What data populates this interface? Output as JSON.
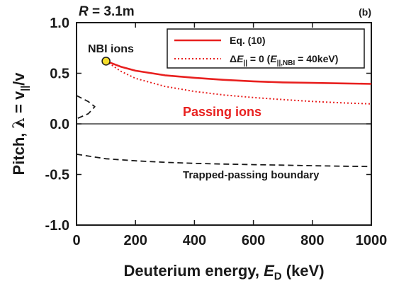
{
  "chart_data": {
    "type": "line",
    "panel_label": "(b)",
    "header": {
      "var": "R",
      "value": " = 3.1m"
    },
    "xlabel": {
      "main": "Deuterium energy, ",
      "var": "E",
      "sub": "D",
      "unit": " (keV)"
    },
    "ylabel": {
      "main": "Pitch, ",
      "lambda": "λ",
      "eq": " = v",
      "sub": "||",
      "tail": "/v"
    },
    "xlim": [
      0,
      1000
    ],
    "ylim": [
      -1.0,
      1.0
    ],
    "x_ticks": [
      0,
      200,
      400,
      600,
      800,
      1000
    ],
    "y_ticks": [
      -1.0,
      -0.5,
      0.0,
      0.5,
      1.0
    ],
    "y_tick_labels": [
      "-1.0",
      "-0.5",
      "0.0",
      "0.5",
      "1.0"
    ],
    "grid": false,
    "legend_position": "top-right",
    "legend": [
      {
        "label": "Eq. (10)"
      },
      {
        "label_parts": [
          "Δ",
          "E",
          "||",
          " = 0 (",
          "E",
          "||,NBI",
          " = 40keV)"
        ]
      }
    ],
    "series": [
      {
        "name": "Eq. (10)",
        "color": "#e8201f",
        "style": "solid",
        "x": [
          100,
          150,
          200,
          300,
          400,
          500,
          600,
          700,
          800,
          900,
          1000
        ],
        "y": [
          0.62,
          0.565,
          0.525,
          0.48,
          0.455,
          0.435,
          0.42,
          0.41,
          0.405,
          0.4,
          0.395
        ]
      },
      {
        "name": "ΔE|| = 0 (E||,NBI = 40keV)",
        "color": "#e8201f",
        "style": "dotted",
        "x": [
          100,
          150,
          200,
          300,
          400,
          500,
          600,
          700,
          800,
          900,
          1000
        ],
        "y": [
          0.62,
          0.52,
          0.45,
          0.37,
          0.32,
          0.285,
          0.26,
          0.24,
          0.222,
          0.208,
          0.197
        ]
      },
      {
        "name": "Trapped-passing boundary",
        "color": "#1a1a1a",
        "style": "dashed",
        "x": [
          0,
          100,
          200,
          300,
          400,
          500,
          600,
          700,
          800,
          900,
          1000
        ],
        "y": [
          -0.3,
          -0.345,
          -0.365,
          -0.38,
          -0.39,
          -0.397,
          -0.403,
          -0.408,
          -0.413,
          -0.418,
          -0.422
        ]
      },
      {
        "name": "Trapped-passing boundary (upper)",
        "color": "#1a1a1a",
        "style": "dashed",
        "x": [
          0,
          40,
          62,
          40,
          0
        ],
        "y": [
          0.28,
          0.22,
          0.17,
          0.1,
          0.05
        ]
      }
    ],
    "markers": [
      {
        "label": "NBI ions",
        "x": 100,
        "y": 0.62,
        "fill": "#f5dd2a",
        "stroke": "#1a1a1a"
      }
    ],
    "annotations": {
      "passing": {
        "text": "Passing ions",
        "color": "#e8201f"
      },
      "boundary": {
        "text": "Trapped-passing boundary",
        "color": "#1a1a1a"
      }
    }
  }
}
